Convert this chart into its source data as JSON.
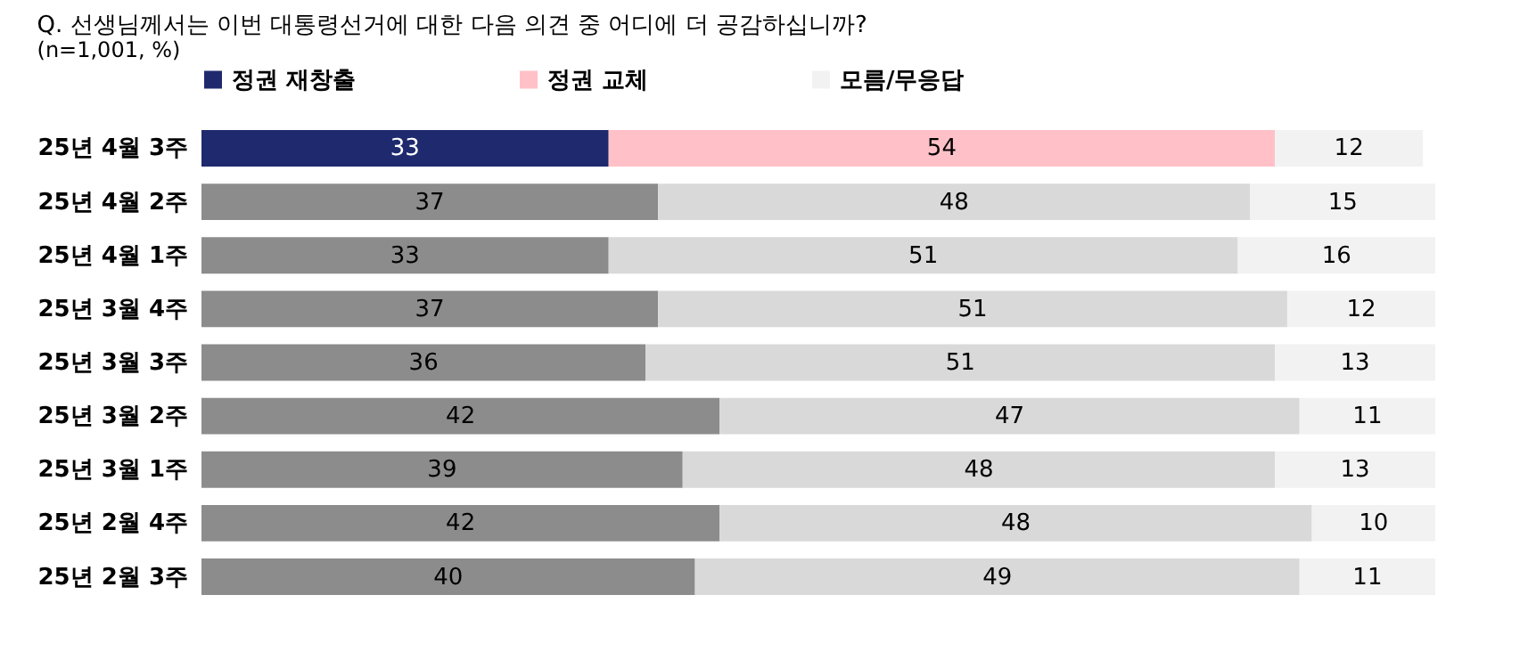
{
  "chart_data": {
    "type": "bar",
    "orientation": "horizontal",
    "stacked": true,
    "title": "Q. 선생님께서는 이번 대통령선거에 대한 다음 의견 중 어디에 더 공감하십니까?",
    "annotations": [
      "(n=1,001, %)"
    ],
    "categories": [
      "25년 4월 3주",
      "25년 4월 2주",
      "25년 4월 1주",
      "25년 3월 4주",
      "25년 3월 3주",
      "25년 3월 2주",
      "25년 3월 1주",
      "25년 2월 4주",
      "25년 2월 3주"
    ],
    "xlim": [
      0,
      100
    ],
    "tick_labels": "y",
    "data_labels": true,
    "legend": "top",
    "series": [
      {
        "name": "정권 재창출",
        "color": "#1f2a6e",
        "colors": [
          "#1f2a6e",
          "#8c8c8c",
          "#8c8c8c",
          "#8c8c8c",
          "#8c8c8c",
          "#8c8c8c",
          "#8c8c8c",
          "#8c8c8c",
          "#8c8c8c"
        ],
        "values": [
          33,
          37,
          33,
          37,
          36,
          42,
          39,
          42,
          40
        ]
      },
      {
        "name": "정권 교체",
        "color": "#ffc1c7",
        "colors": [
          "#ffc1c7",
          "#d9d9d9",
          "#d9d9d9",
          "#d9d9d9",
          "#d9d9d9",
          "#d9d9d9",
          "#d9d9d9",
          "#d9d9d9",
          "#d9d9d9"
        ],
        "values": [
          54,
          48,
          51,
          51,
          51,
          47,
          48,
          48,
          49
        ]
      },
      {
        "name": "모름/무응답",
        "color": "#f2f2f2",
        "colors": [
          "#f2f2f2",
          "#f2f2f2",
          "#f2f2f2",
          "#f2f2f2",
          "#f2f2f2",
          "#f2f2f2",
          "#f2f2f2",
          "#f2f2f2",
          "#f2f2f2"
        ],
        "values": [
          12,
          15,
          16,
          12,
          13,
          11,
          13,
          10,
          11
        ]
      }
    ]
  }
}
